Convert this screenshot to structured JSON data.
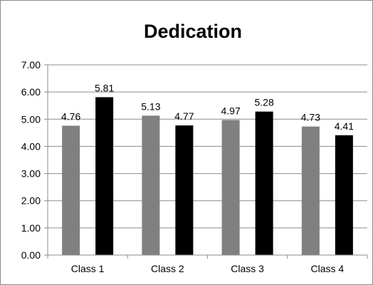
{
  "chart_data": {
    "type": "bar",
    "title": "Dedication",
    "xlabel": "",
    "ylabel": "",
    "categories": [
      "Class 1",
      "Class 2",
      "Class 3",
      "Class 4"
    ],
    "series": [
      {
        "values": [
          4.76,
          5.13,
          4.97,
          4.73
        ],
        "color": "#808080"
      },
      {
        "values": [
          5.81,
          4.77,
          5.28,
          4.41
        ],
        "color": "#000000"
      }
    ],
    "value_labels": [
      [
        "4.76",
        "5.13",
        "4.97",
        "4.73"
      ],
      [
        "5.81",
        "4.77",
        "5.28",
        "4.41"
      ]
    ],
    "ylim": [
      0,
      7
    ],
    "yticks": [
      {
        "value": 0,
        "label": "0.00"
      },
      {
        "value": 1,
        "label": "1.00"
      },
      {
        "value": 2,
        "label": "2.00"
      },
      {
        "value": 3,
        "label": "3.00"
      },
      {
        "value": 4,
        "label": "4.00"
      },
      {
        "value": 5,
        "label": "5.00"
      },
      {
        "value": 6,
        "label": "6.00"
      },
      {
        "value": 7,
        "label": "7.00"
      }
    ],
    "grid": true,
    "legend": "none",
    "gridline_color": "#8c8c8c",
    "axis_color": "#8c8c8c"
  }
}
